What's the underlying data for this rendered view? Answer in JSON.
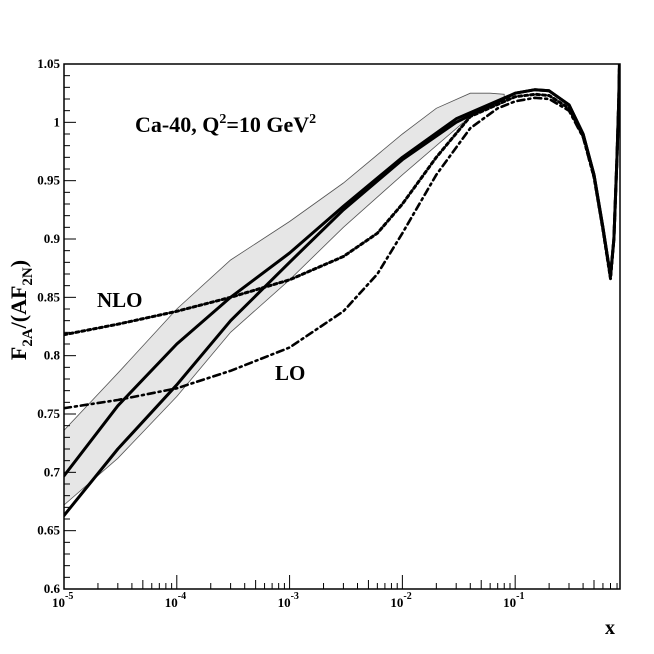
{
  "chart_data": {
    "type": "line",
    "title": "",
    "annotation_main": "Ca-40, Q",
    "annotation_sup1": "2",
    "annotation_mid": "=10 GeV",
    "annotation_sup2": "2",
    "xlabel": "x",
    "ylabel_main": "F",
    "ylabel_sub1": "2A",
    "ylabel_mid": "/(AF",
    "ylabel_sub2": "2N",
    "ylabel_end": ")",
    "xscale": "log",
    "xlim": [
      1e-05,
      0.85
    ],
    "ylim": [
      0.6,
      1.05
    ],
    "xticks": [
      {
        "base": "10",
        "exp": "-5"
      },
      {
        "base": "10",
        "exp": "-4"
      },
      {
        "base": "10",
        "exp": "-3"
      },
      {
        "base": "10",
        "exp": "-2"
      },
      {
        "base": "10",
        "exp": "-1"
      }
    ],
    "yticks": [
      "0.6",
      "0.65",
      "0.7",
      "0.75",
      "0.8",
      "0.85",
      "0.9",
      "0.95",
      "1",
      "1.05"
    ],
    "curve_labels": {
      "nlo": "NLO",
      "lo": "LO"
    },
    "band": {
      "name": "uncertainty band",
      "x": [
        1e-05,
        3e-05,
        0.0001,
        0.0003,
        0.001,
        0.003,
        0.01,
        0.02,
        0.04,
        0.06,
        0.08
      ],
      "upper": [
        0.736,
        0.785,
        0.84,
        0.882,
        0.915,
        0.948,
        0.99,
        1.012,
        1.025,
        1.025,
        1.024
      ],
      "lower": [
        0.672,
        0.712,
        0.765,
        0.82,
        0.865,
        0.91,
        0.955,
        0.98,
        1.005,
        1.015,
        1.02
      ]
    },
    "series": [
      {
        "name": "central solid (upper)",
        "style": "solid",
        "x": [
          1e-05,
          3e-05,
          0.0001,
          0.0003,
          0.001,
          0.003,
          0.01,
          0.03,
          0.1,
          0.15,
          0.2,
          0.3,
          0.4,
          0.5,
          0.6,
          0.7,
          0.75,
          0.8,
          0.83,
          0.845
        ],
        "values": [
          0.697,
          0.757,
          0.81,
          0.85,
          0.888,
          0.928,
          0.97,
          1.003,
          1.025,
          1.028,
          1.027,
          1.015,
          0.99,
          0.955,
          0.91,
          0.868,
          0.9,
          0.97,
          1.02,
          1.06
        ]
      },
      {
        "name": "solid (lower)",
        "style": "solid",
        "x": [
          1e-05,
          3e-05,
          0.0001,
          0.0003,
          0.001,
          0.003,
          0.01,
          0.03,
          0.1,
          0.15,
          0.2,
          0.3,
          0.4,
          0.5,
          0.6,
          0.7,
          0.75,
          0.8,
          0.83,
          0.845
        ],
        "values": [
          0.663,
          0.72,
          0.775,
          0.83,
          0.88,
          0.925,
          0.968,
          1.0,
          1.025,
          1.028,
          1.027,
          1.015,
          0.99,
          0.955,
          0.91,
          0.868,
          0.9,
          0.97,
          1.02,
          1.06
        ]
      },
      {
        "name": "NLO",
        "style": "dotted",
        "x": [
          1e-05,
          3e-05,
          0.0001,
          0.0003,
          0.001,
          0.003,
          0.006,
          0.01,
          0.02,
          0.04,
          0.1,
          0.15,
          0.2,
          0.3,
          0.4,
          0.5,
          0.6,
          0.7,
          0.75,
          0.8,
          0.83,
          0.845
        ],
        "values": [
          0.818,
          0.827,
          0.838,
          0.85,
          0.865,
          0.885,
          0.905,
          0.93,
          0.97,
          1.005,
          1.022,
          1.024,
          1.023,
          1.012,
          0.988,
          0.953,
          0.908,
          0.866,
          0.9,
          0.97,
          1.02,
          1.06
        ]
      },
      {
        "name": "LO",
        "style": "dashdot",
        "x": [
          1e-05,
          3e-05,
          0.0001,
          0.0003,
          0.001,
          0.003,
          0.006,
          0.01,
          0.02,
          0.04,
          0.07,
          0.1,
          0.15,
          0.2,
          0.3,
          0.4,
          0.5,
          0.6,
          0.7,
          0.75,
          0.8,
          0.83,
          0.845
        ],
        "values": [
          0.755,
          0.762,
          0.772,
          0.787,
          0.807,
          0.838,
          0.87,
          0.905,
          0.955,
          0.995,
          1.012,
          1.018,
          1.021,
          1.02,
          1.01,
          0.987,
          0.953,
          0.908,
          0.866,
          0.9,
          0.97,
          1.02,
          1.06
        ]
      }
    ]
  }
}
